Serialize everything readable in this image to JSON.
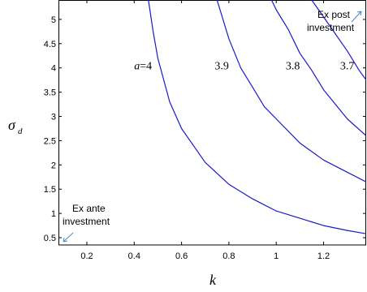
{
  "chart_data": {
    "type": "line",
    "title": "",
    "xlabel": "k",
    "ylabel": "σ",
    "ylabel_sub": "d",
    "xlim": [
      0.08,
      1.38
    ],
    "ylim": [
      0.35,
      5.4
    ],
    "xticks": [
      0.2,
      0.4,
      0.6,
      0.8,
      1,
      1.2
    ],
    "xtick_labels": [
      "0.2",
      "0.4",
      "0.6",
      "0.8",
      "1",
      "1.2"
    ],
    "yticks": [
      0.5,
      1,
      1.5,
      2,
      2.5,
      3,
      3.5,
      4,
      4.5,
      5
    ],
    "ytick_labels": [
      "0.5",
      "1",
      "1.5",
      "2",
      "2.5",
      "3",
      "3.5",
      "4",
      "4.5",
      "5"
    ],
    "grid": false,
    "line_color": "#1a1acc",
    "annotation_color": "#4a86c8",
    "series": [
      {
        "label": "a=4",
        "x": [
          0.46,
          0.48,
          0.5,
          0.55,
          0.6,
          0.7,
          0.8,
          0.9,
          1.0,
          1.1,
          1.2,
          1.3,
          1.38
        ],
        "y": [
          5.4,
          4.75,
          4.2,
          3.3,
          2.75,
          2.05,
          1.6,
          1.3,
          1.05,
          0.9,
          0.75,
          0.65,
          0.58
        ]
      },
      {
        "label": "3.9",
        "x": [
          0.75,
          0.8,
          0.85,
          0.9,
          0.95,
          1.0,
          1.1,
          1.2,
          1.3,
          1.38
        ],
        "y": [
          5.4,
          4.6,
          4.0,
          3.6,
          3.2,
          2.95,
          2.45,
          2.1,
          1.85,
          1.65
        ]
      },
      {
        "label": "3.8",
        "x": [
          0.98,
          1.0,
          1.05,
          1.1,
          1.15,
          1.2,
          1.25,
          1.3,
          1.38
        ],
        "y": [
          5.4,
          5.2,
          4.8,
          4.3,
          3.95,
          3.55,
          3.25,
          2.95,
          2.6
        ]
      },
      {
        "label": "3.7",
        "x": [
          1.15,
          1.2,
          1.25,
          1.3,
          1.35,
          1.38
        ],
        "y": [
          5.4,
          5.05,
          4.7,
          4.35,
          3.95,
          3.75
        ]
      }
    ],
    "curve_labels": [
      {
        "text": "a=4",
        "x": 0.4,
        "y": 3.97
      },
      {
        "text": "3.9",
        "x": 0.74,
        "y": 3.97
      },
      {
        "text": "3.8",
        "x": 1.04,
        "y": 3.97
      },
      {
        "text": "3.7",
        "x": 1.27,
        "y": 3.97
      }
    ],
    "annotations": [
      {
        "lines": [
          "Ex post",
          "investment"
        ],
        "arrow": "up-right"
      },
      {
        "lines": [
          "Ex ante",
          "investment"
        ],
        "arrow": "down-left"
      }
    ]
  }
}
